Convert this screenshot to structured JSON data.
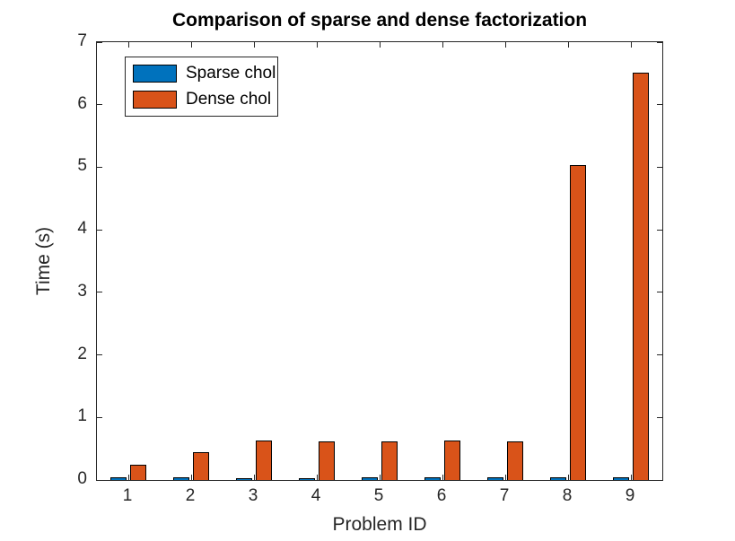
{
  "chart_data": {
    "type": "bar",
    "title": "Comparison of sparse and dense factorization",
    "xlabel": "Problem ID",
    "ylabel": "Time (s)",
    "categories": [
      "1",
      "2",
      "3",
      "4",
      "5",
      "6",
      "7",
      "8",
      "9"
    ],
    "series": [
      {
        "name": "Sparse chol",
        "color": "#0072BD",
        "values": [
          0.05,
          0.04,
          0.02,
          0.02,
          0.05,
          0.04,
          0.05,
          0.05,
          0.05
        ]
      },
      {
        "name": "Dense chol",
        "color": "#D95319",
        "values": [
          0.24,
          0.45,
          0.63,
          0.62,
          0.61,
          0.63,
          0.62,
          5.04,
          6.51
        ]
      }
    ],
    "ylim": [
      0,
      7
    ],
    "y_ticks": [
      0,
      1,
      2,
      3,
      4,
      5,
      6,
      7
    ],
    "legend_position": "top-left",
    "grid": false,
    "axis_color": "#262626",
    "bar_edge_color": "#000000",
    "background_color": "#FFFFFF"
  }
}
